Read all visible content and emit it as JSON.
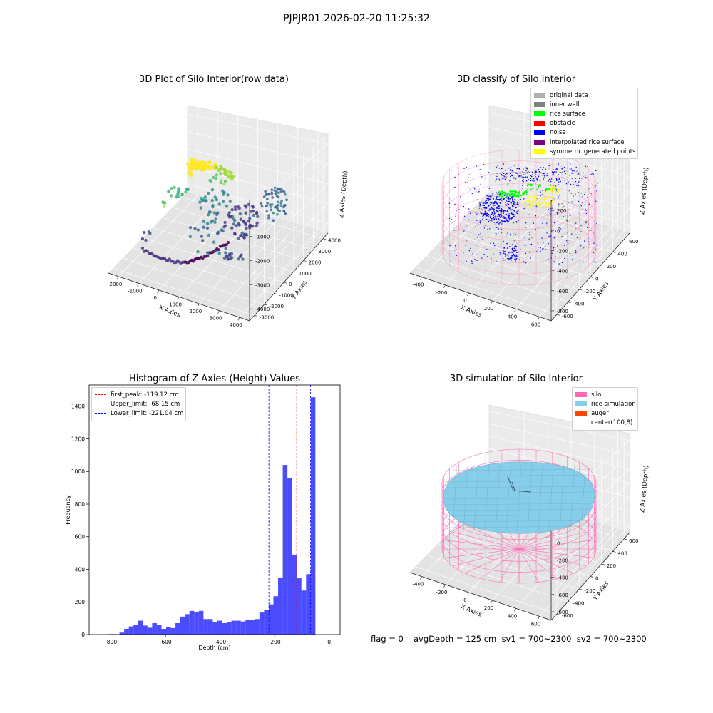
{
  "suptitle": "PJPJR01 2026-02-20 11:25:32",
  "panels": {
    "raw": {
      "title": "3D Plot of Silo Interior(row data)",
      "xlabel": "X Axies",
      "ylabel": "Y Axies",
      "zlabel": "Z Axies (Depth)",
      "xticks": [
        "-2000",
        "-1000",
        "0",
        "1000",
        "2000",
        "3000",
        "4000"
      ],
      "yticks": [
        "-3000",
        "-2000",
        "-1000",
        "0",
        "1000",
        "2000",
        "3000",
        "4000"
      ],
      "zticks": [
        "0",
        "-1000",
        "-2000",
        "-3000",
        "-4000"
      ]
    },
    "classify": {
      "title": "3D classify of Silo Interior",
      "xlabel": "X Axies",
      "ylabel": "Y Axies",
      "zlabel": "Z Axies (Depth)",
      "xticks": [
        "-400",
        "-200",
        "0",
        "200",
        "400",
        "600"
      ],
      "yticks": [
        "-600",
        "-400",
        "-200",
        "0",
        "200",
        "400",
        "600"
      ],
      "zticks": [
        "200",
        "0",
        "-200",
        "-400",
        "-600",
        "-800"
      ],
      "legend": [
        {
          "label": "original data",
          "color": "#b0b0b0"
        },
        {
          "label": "inner wall",
          "color": "#808080"
        },
        {
          "label": "rice surface",
          "color": "#00ff00"
        },
        {
          "label": "obstacle",
          "color": "#ff0000"
        },
        {
          "label": "noise",
          "color": "#0000ff"
        },
        {
          "label": "interpolated rice surface",
          "color": "#800080"
        },
        {
          "label": "symmetric generated points",
          "color": "#ffff00"
        }
      ]
    },
    "simulation": {
      "title": "3D simulation of Silo Interior",
      "xlabel": "X Axies",
      "ylabel": "Y Axies",
      "zlabel": "Z Axies (Depth)",
      "xticks": [
        "-400",
        "-200",
        "0",
        "200",
        "400",
        "600"
      ],
      "yticks": [
        "-600",
        "-400",
        "-200",
        "0",
        "200",
        "400",
        "600"
      ],
      "zticks": [
        "400",
        "200",
        "0",
        "-200",
        "-400",
        "-600",
        "-800"
      ],
      "legend": [
        {
          "label": "silo",
          "color": "#ff69b4"
        },
        {
          "label": "rice simulation",
          "color": "#87ceeb"
        },
        {
          "label": "auger",
          "color": "#ff4500"
        },
        {
          "label": "center(100,8)",
          "color": "#ffffff"
        }
      ]
    },
    "footer": {
      "flag": "flag = 0",
      "stats": "avgDepth = 125 cm  sv1 = 700~2300  sv2 = 700~2300"
    }
  },
  "chart_data": [
    {
      "type": "histogram",
      "title": "Histogram of Z-Axies (Height) Values",
      "xlabel": "Depth (cm)",
      "ylabel": "Frequency",
      "bar_color": "#0000ff",
      "xlim": [
        -880,
        40
      ],
      "ylim": [
        0,
        1530
      ],
      "xticks": [
        -800,
        -600,
        -400,
        -200,
        0
      ],
      "yticks": [
        0,
        200,
        400,
        600,
        800,
        1000,
        1200,
        1400
      ],
      "bin_start": -820,
      "bin_width": 17.1,
      "counts": [
        2,
        3,
        2,
        12,
        35,
        50,
        60,
        85,
        55,
        42,
        70,
        60,
        35,
        45,
        40,
        70,
        110,
        125,
        145,
        140,
        145,
        95,
        95,
        75,
        85,
        70,
        75,
        85,
        85,
        80,
        90,
        90,
        95,
        135,
        150,
        185,
        235,
        350,
        1040,
        960,
        490,
        345,
        270,
        370,
        1455
      ],
      "reference_lines": [
        {
          "name": "first_peak",
          "value": -119.12,
          "label": "first_peak: -119.12 cm",
          "color": "#ff0000"
        },
        {
          "name": "Upper_limit",
          "value": -68.15,
          "label": "Upper_limit: -68.15 cm",
          "color": "#0000ff"
        },
        {
          "name": "Lower_limit",
          "value": -221.04,
          "label": "Lower_limit: -221.04 cm",
          "color": "#0000ff"
        }
      ],
      "legend_position": "upper-left"
    }
  ]
}
